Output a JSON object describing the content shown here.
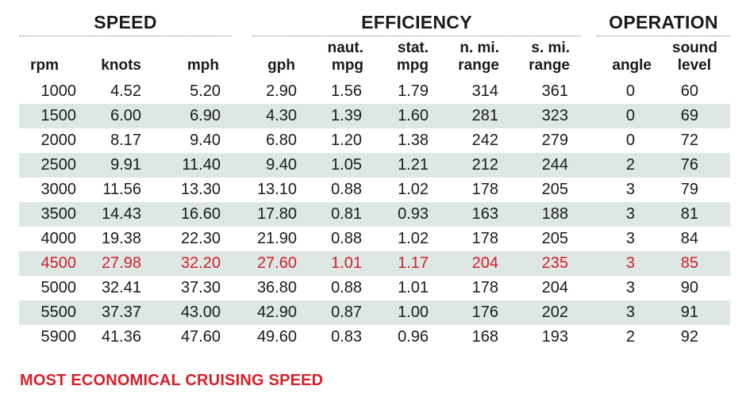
{
  "groups": {
    "speed": "SPEED",
    "efficiency": "EFFICIENCY",
    "operation": "OPERATION"
  },
  "columns": {
    "rpm": [
      "",
      "rpm"
    ],
    "knots": [
      "",
      "knots"
    ],
    "mph": [
      "",
      "mph"
    ],
    "gph": [
      "",
      "gph"
    ],
    "naut_mpg": [
      "naut.",
      "mpg"
    ],
    "stat_mpg": [
      "stat.",
      "mpg"
    ],
    "n_mi_range": [
      "n. mi.",
      "range"
    ],
    "s_mi_range": [
      "s. mi.",
      "range"
    ],
    "angle": [
      "",
      "angle"
    ],
    "sound_level": [
      "sound",
      "level"
    ]
  },
  "rows": [
    [
      "1000",
      "4.52",
      "5.20",
      "2.90",
      "1.56",
      "1.79",
      "314",
      "361",
      "0",
      "60"
    ],
    [
      "1500",
      "6.00",
      "6.90",
      "4.30",
      "1.39",
      "1.60",
      "281",
      "323",
      "0",
      "69"
    ],
    [
      "2000",
      "8.17",
      "9.40",
      "6.80",
      "1.20",
      "1.38",
      "242",
      "279",
      "0",
      "72"
    ],
    [
      "2500",
      "9.91",
      "11.40",
      "9.40",
      "1.05",
      "1.21",
      "212",
      "244",
      "2",
      "76"
    ],
    [
      "3000",
      "11.56",
      "13.30",
      "13.10",
      "0.88",
      "1.02",
      "178",
      "205",
      "3",
      "79"
    ],
    [
      "3500",
      "14.43",
      "16.60",
      "17.80",
      "0.81",
      "0.93",
      "163",
      "188",
      "3",
      "81"
    ],
    [
      "4000",
      "19.38",
      "22.30",
      "21.90",
      "0.88",
      "1.02",
      "178",
      "205",
      "3",
      "84"
    ],
    [
      "4500",
      "27.98",
      "32.20",
      "27.60",
      "1.01",
      "1.17",
      "204",
      "235",
      "3",
      "85"
    ],
    [
      "5000",
      "32.41",
      "37.30",
      "36.80",
      "0.88",
      "1.01",
      "178",
      "204",
      "3",
      "90"
    ],
    [
      "5500",
      "37.37",
      "43.00",
      "42.90",
      "0.87",
      "1.00",
      "176",
      "202",
      "3",
      "91"
    ],
    [
      "5900",
      "41.36",
      "47.60",
      "49.60",
      "0.83",
      "0.96",
      "168",
      "193",
      "2",
      "92"
    ]
  ],
  "highlight_rpm": "4500",
  "footnote": "MOST ECONOMICAL CRUISING SPEED",
  "colors": {
    "highlight": "#d4202a",
    "row_shade": "#dde8e5",
    "text": "#1a1a1a"
  }
}
